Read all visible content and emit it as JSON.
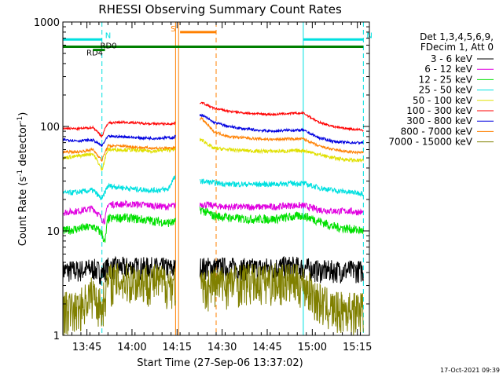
{
  "chart_data": {
    "type": "line",
    "title": "RHESSI Observing Summary Count Rates",
    "xlabel": "Start Time (27-Sep-06 13:37:02)",
    "ylabel_prefix": "Count Rate (s",
    "ylabel_sup": "-1",
    "ylabel_suffix": " detector",
    "ylabel_sup2": "-1",
    "ylabel_end": ")",
    "yscale": "log",
    "xlim_min": [
      0,
      102
    ],
    "ylim": [
      1,
      1000
    ],
    "xticks": [
      {
        "t": 8,
        "label": "13:45"
      },
      {
        "t": 23,
        "label": "14:00"
      },
      {
        "t": 38,
        "label": "14:15"
      },
      {
        "t": 53,
        "label": "14:30"
      },
      {
        "t": 68,
        "label": "14:45"
      },
      {
        "t": 83,
        "label": "15:00"
      },
      {
        "t": 98,
        "label": "15:15"
      }
    ],
    "yticks": [
      {
        "v": 1,
        "label": "1"
      },
      {
        "v": 10,
        "label": "10"
      },
      {
        "v": 100,
        "label": "100"
      },
      {
        "v": 1000,
        "label": "1000"
      }
    ],
    "legend_header": [
      "Det 1,3,4,5,6,9,",
      "FDecim 1, Att 0"
    ],
    "legend_position": "right",
    "data_gaps_min": [
      [
        37.5,
        45.5
      ]
    ],
    "series": [
      {
        "name": "3 - 6 keV",
        "color": "#000000",
        "points": [
          [
            0,
            4.2
          ],
          [
            5,
            4.2
          ],
          [
            10,
            4.4
          ],
          [
            13,
            4.0
          ],
          [
            15,
            4.5
          ],
          [
            20,
            4.5
          ],
          [
            25,
            4.5
          ],
          [
            30,
            4.5
          ],
          [
            35,
            4.4
          ],
          [
            37,
            4.4
          ],
          [
            46,
            4.5
          ],
          [
            50,
            4.5
          ],
          [
            55,
            4.5
          ],
          [
            60,
            4.4
          ],
          [
            65,
            4.4
          ],
          [
            70,
            4.5
          ],
          [
            75,
            4.6
          ],
          [
            80,
            4.5
          ],
          [
            85,
            4.2
          ],
          [
            90,
            4.2
          ],
          [
            95,
            4.2
          ],
          [
            100,
            4.2
          ]
        ]
      },
      {
        "name": "6 - 12 keV",
        "color": "#e000e0",
        "points": [
          [
            0,
            15
          ],
          [
            5,
            15.5
          ],
          [
            10,
            16.5
          ],
          [
            13,
            13
          ],
          [
            14,
            12.5
          ],
          [
            15,
            18
          ],
          [
            20,
            18
          ],
          [
            25,
            18
          ],
          [
            30,
            17.5
          ],
          [
            35,
            17
          ],
          [
            37,
            17.5
          ],
          [
            46,
            18
          ],
          [
            50,
            17.5
          ],
          [
            55,
            17
          ],
          [
            60,
            17
          ],
          [
            65,
            17
          ],
          [
            70,
            17
          ],
          [
            75,
            17.5
          ],
          [
            80,
            17.5
          ],
          [
            85,
            16
          ],
          [
            90,
            15.5
          ],
          [
            95,
            15.5
          ],
          [
            100,
            15
          ]
        ]
      },
      {
        "name": "12 - 25 keV",
        "color": "#00e000",
        "points": [
          [
            0,
            10
          ],
          [
            5,
            10.5
          ],
          [
            10,
            11
          ],
          [
            13,
            9.5
          ],
          [
            14,
            7.5
          ],
          [
            15,
            13
          ],
          [
            20,
            13.5
          ],
          [
            25,
            13
          ],
          [
            30,
            12.5
          ],
          [
            35,
            12
          ],
          [
            37,
            12
          ],
          [
            46,
            16
          ],
          [
            50,
            14
          ],
          [
            55,
            13.5
          ],
          [
            60,
            13
          ],
          [
            65,
            13
          ],
          [
            70,
            13
          ],
          [
            75,
            13.5
          ],
          [
            80,
            14
          ],
          [
            85,
            12.5
          ],
          [
            90,
            11
          ],
          [
            95,
            10.5
          ],
          [
            100,
            10
          ]
        ]
      },
      {
        "name": "25 - 50 keV",
        "color": "#00e0e0",
        "points": [
          [
            0,
            23
          ],
          [
            5,
            23.5
          ],
          [
            10,
            24.5
          ],
          [
            13,
            20
          ],
          [
            15,
            27
          ],
          [
            20,
            26
          ],
          [
            25,
            25
          ],
          [
            30,
            24.5
          ],
          [
            35,
            25
          ],
          [
            37,
            32
          ],
          [
            46,
            30
          ],
          [
            50,
            29
          ],
          [
            55,
            28
          ],
          [
            60,
            28
          ],
          [
            65,
            28
          ],
          [
            70,
            28
          ],
          [
            75,
            28.5
          ],
          [
            80,
            28.5
          ],
          [
            85,
            26
          ],
          [
            90,
            24.5
          ],
          [
            95,
            23.5
          ],
          [
            100,
            23
          ]
        ]
      },
      {
        "name": "50 - 100 keV",
        "color": "#e0e000",
        "points": [
          [
            0,
            50
          ],
          [
            5,
            52
          ],
          [
            10,
            55
          ],
          [
            13,
            38
          ],
          [
            15,
            60
          ],
          [
            20,
            60
          ],
          [
            25,
            59
          ],
          [
            30,
            58
          ],
          [
            35,
            60
          ],
          [
            37,
            60
          ],
          [
            46,
            75
          ],
          [
            50,
            62
          ],
          [
            55,
            60
          ],
          [
            60,
            59
          ],
          [
            65,
            58
          ],
          [
            70,
            58
          ],
          [
            75,
            58
          ],
          [
            80,
            59
          ],
          [
            85,
            54
          ],
          [
            90,
            50
          ],
          [
            95,
            48
          ],
          [
            100,
            47
          ]
        ]
      },
      {
        "name": "100 - 300 keV",
        "color": "#00e0e0",
        "points": []
      },
      {
        "name": "300 - 800 keV",
        "color": "#0000e0",
        "points": [
          [
            0,
            75
          ],
          [
            5,
            73
          ],
          [
            10,
            74
          ],
          [
            13,
            65
          ],
          [
            15,
            80
          ],
          [
            20,
            80
          ],
          [
            25,
            78
          ],
          [
            30,
            77
          ],
          [
            35,
            78
          ],
          [
            37,
            78
          ],
          [
            46,
            130
          ],
          [
            50,
            110
          ],
          [
            55,
            100
          ],
          [
            60,
            95
          ],
          [
            65,
            92
          ],
          [
            70,
            90
          ],
          [
            75,
            92
          ],
          [
            80,
            92
          ],
          [
            85,
            78
          ],
          [
            90,
            72
          ],
          [
            95,
            70
          ],
          [
            100,
            70
          ]
        ]
      },
      {
        "name": "800 - 7000 keV",
        "color": "#ff8000",
        "points": [
          [
            0,
            57
          ],
          [
            5,
            57
          ],
          [
            10,
            60
          ],
          [
            13,
            47
          ],
          [
            15,
            65
          ],
          [
            20,
            65
          ],
          [
            25,
            63
          ],
          [
            30,
            62
          ],
          [
            35,
            62
          ],
          [
            37,
            62
          ],
          [
            46,
            120
          ],
          [
            50,
            90
          ],
          [
            55,
            80
          ],
          [
            60,
            78
          ],
          [
            65,
            76
          ],
          [
            70,
            75
          ],
          [
            75,
            76
          ],
          [
            80,
            76
          ],
          [
            85,
            65
          ],
          [
            90,
            60
          ],
          [
            95,
            57
          ],
          [
            100,
            56
          ]
        ]
      },
      {
        "name": "7000 - 15000 keV",
        "color": "#808000",
        "points": [
          [
            0,
            1.8
          ],
          [
            5,
            1.8
          ],
          [
            10,
            2.6
          ],
          [
            13,
            1.8
          ],
          [
            15,
            3.4
          ],
          [
            20,
            3.4
          ],
          [
            25,
            3.4
          ],
          [
            30,
            3.4
          ],
          [
            35,
            3.2
          ],
          [
            37,
            3.2
          ],
          [
            46,
            2.8
          ],
          [
            50,
            3.2
          ],
          [
            55,
            3.2
          ],
          [
            60,
            3.4
          ],
          [
            65,
            3.3
          ],
          [
            70,
            3.4
          ],
          [
            75,
            3.4
          ],
          [
            80,
            3.2
          ],
          [
            85,
            2.2
          ],
          [
            90,
            1.8
          ],
          [
            95,
            1.8
          ],
          [
            100,
            1.8
          ]
        ]
      }
    ],
    "red_series": {
      "name": "100 - 300 keV",
      "color": "#ff0000",
      "points": [
        [
          0,
          96
        ],
        [
          5,
          95
        ],
        [
          10,
          98
        ],
        [
          13,
          80
        ],
        [
          15,
          108
        ],
        [
          20,
          110
        ],
        [
          25,
          108
        ],
        [
          30,
          106
        ],
        [
          35,
          106
        ],
        [
          37,
          106
        ],
        [
          46,
          170
        ],
        [
          50,
          150
        ],
        [
          55,
          140
        ],
        [
          60,
          135
        ],
        [
          65,
          132
        ],
        [
          70,
          130
        ],
        [
          75,
          133
        ],
        [
          80,
          134
        ],
        [
          85,
          110
        ],
        [
          90,
          100
        ],
        [
          95,
          95
        ],
        [
          100,
          92
        ]
      ]
    },
    "indicator_bars": [
      {
        "label": "N",
        "color": "#00e0e0",
        "y": 680,
        "start": 0,
        "end": 13
      },
      {
        "label": "N",
        "color": "#00e0e0",
        "y": 680,
        "start": 80,
        "end": 100
      },
      {
        "label": "S",
        "color": "#ff8000",
        "y": 800,
        "start": 39,
        "end": 51
      },
      {
        "label": "RD4",
        "color": "#008000",
        "y": 580,
        "start": 0,
        "end": 100
      },
      {
        "label": "RD0",
        "color": "#008000",
        "y": 540,
        "start": 10,
        "end": 14
      }
    ],
    "vertical_lines": [
      {
        "t": 0,
        "color": "#00e0e0",
        "style": "solid"
      },
      {
        "t": 13,
        "color": "#00e0e0",
        "style": "dashed"
      },
      {
        "t": 37.5,
        "color": "#ff8000",
        "style": "solid"
      },
      {
        "t": 38.5,
        "color": "#ff8000",
        "style": "solid"
      },
      {
        "t": 51,
        "color": "#ff8000",
        "style": "dashed"
      },
      {
        "t": 80,
        "color": "#00e0e0",
        "style": "solid"
      },
      {
        "t": 100,
        "color": "#00e0e0",
        "style": "dashed"
      }
    ],
    "footer_date": "17-Oct-2021 09:39"
  }
}
